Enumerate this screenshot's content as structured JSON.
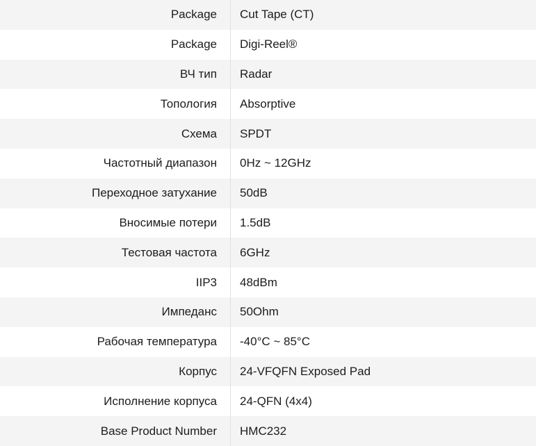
{
  "colors": {
    "row_stripe": "#f4f4f4",
    "row_white": "#ffffff",
    "divider": "#e0e0e0",
    "text": "#1c1c1c"
  },
  "spec_table": {
    "rows": [
      {
        "label": "Package",
        "value": "Cut Tape (CT)"
      },
      {
        "label": "Package",
        "value": "Digi-Reel®"
      },
      {
        "label": "ВЧ тип",
        "value": "Radar"
      },
      {
        "label": "Топология",
        "value": "Absorptive"
      },
      {
        "label": "Схема",
        "value": "SPDT"
      },
      {
        "label": "Частотный диапазон",
        "value": "0Hz ~ 12GHz"
      },
      {
        "label": "Переходное затухание",
        "value": "50dB"
      },
      {
        "label": "Вносимые потери",
        "value": "1.5dB"
      },
      {
        "label": "Тестовая частота",
        "value": "6GHz"
      },
      {
        "label": "IIP3",
        "value": "48dBm"
      },
      {
        "label": "Импеданс",
        "value": "50Ohm"
      },
      {
        "label": "Рабочая температура",
        "value": "-40°C ~ 85°C"
      },
      {
        "label": "Корпус",
        "value": "24-VFQFN Exposed Pad"
      },
      {
        "label": "Исполнение корпуса",
        "value": "24-QFN (4x4)"
      },
      {
        "label": "Base Product Number",
        "value": "HMC232"
      }
    ]
  }
}
